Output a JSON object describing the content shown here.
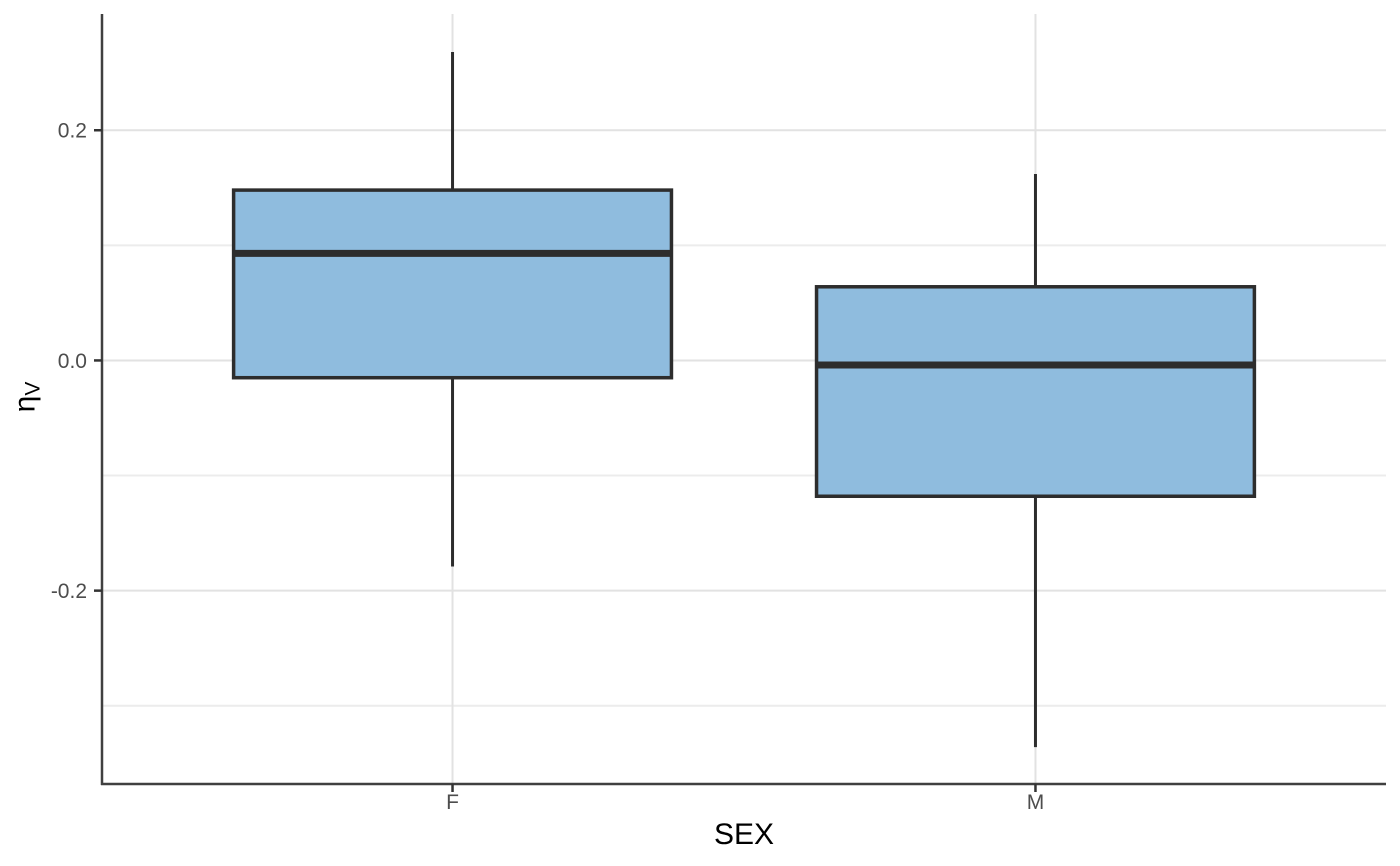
{
  "figure": {
    "background": "#FFFFFF"
  },
  "chart_data": {
    "type": "boxplot",
    "title": "",
    "xlabel": "SEX",
    "ylabel_base": "η",
    "ylabel_subscript": "V",
    "categories": [
      "F",
      "M"
    ],
    "boxes": [
      {
        "category": "F",
        "lower_whisker": -0.179,
        "q1": -0.015,
        "median": 0.093,
        "q3": 0.148,
        "upper_whisker": 0.268
      },
      {
        "category": "M",
        "lower_whisker": -0.336,
        "q1": -0.118,
        "median": -0.004,
        "q3": 0.064,
        "upper_whisker": 0.162
      }
    ],
    "y_ticks": [
      {
        "value": 0.2,
        "label": "0.2"
      },
      {
        "value": 0.0,
        "label": "0.0"
      },
      {
        "value": -0.2,
        "label": "-0.2"
      }
    ],
    "y_minor_ticks": [
      0.1,
      -0.1,
      -0.3
    ],
    "ylim": [
      -0.368,
      0.301
    ],
    "x_positions": [
      0.273,
      0.727
    ],
    "box_width_frac": 0.341,
    "grid": true,
    "legend": "none",
    "colors": {
      "box_fill": "#8FBCDE",
      "box_border": "#2D2D2D",
      "median_line": "#2D2D2D",
      "whisker": "#2D2D2D",
      "grid_major": "#E2E2E2",
      "grid_minor": "#ECECEC",
      "axis_line": "#404040",
      "tick_mark": "#333333",
      "tick_label": "#4D4D4D",
      "axis_title": "#000000"
    }
  }
}
